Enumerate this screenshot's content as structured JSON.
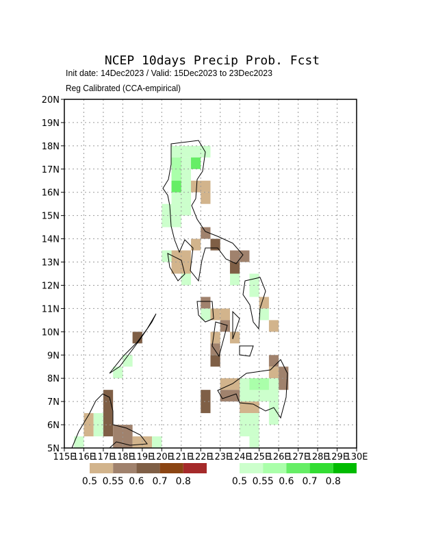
{
  "header": {
    "title": "NCEP 10days Precip Prob. Fcst",
    "line1": "Init date: 14Dec2023 / Valid: 15Dec2023 to 23Dec2023",
    "line2": "Reg Calibrated (CCA-empirical)"
  },
  "map": {
    "lon_range": [
      115,
      130
    ],
    "lat_range": [
      5,
      20
    ],
    "lon_ticks": [
      {
        "value": 115,
        "label": "115E"
      },
      {
        "value": 116,
        "label": "116E"
      },
      {
        "value": 117,
        "label": "117E"
      },
      {
        "value": 118,
        "label": "118E"
      },
      {
        "value": 119,
        "label": "119E"
      },
      {
        "value": 120,
        "label": "120E"
      },
      {
        "value": 121,
        "label": "121E"
      },
      {
        "value": 122,
        "label": "122E"
      },
      {
        "value": 123,
        "label": "123E"
      },
      {
        "value": 124,
        "label": "124E"
      },
      {
        "value": 125,
        "label": "125E"
      },
      {
        "value": 126,
        "label": "126E"
      },
      {
        "value": 127,
        "label": "127E"
      },
      {
        "value": 128,
        "label": "128E"
      },
      {
        "value": 129,
        "label": "129E"
      },
      {
        "value": 130,
        "label": "130E"
      }
    ],
    "lat_ticks": [
      {
        "value": 5,
        "label": "5N"
      },
      {
        "value": 6,
        "label": "6N"
      },
      {
        "value": 7,
        "label": "7N"
      },
      {
        "value": 8,
        "label": "8N"
      },
      {
        "value": 9,
        "label": "9N"
      },
      {
        "value": 10,
        "label": "10N"
      },
      {
        "value": 11,
        "label": "11N"
      },
      {
        "value": 12,
        "label": "12N"
      },
      {
        "value": 13,
        "label": "13N"
      },
      {
        "value": 14,
        "label": "14N"
      },
      {
        "value": 15,
        "label": "15N"
      },
      {
        "value": 16,
        "label": "16N"
      },
      {
        "value": 17,
        "label": "17N"
      },
      {
        "value": 18,
        "label": "18N"
      },
      {
        "value": 19,
        "label": "19N"
      },
      {
        "value": 20,
        "label": "20N"
      }
    ],
    "grid": true,
    "blocks": [
      {
        "lon": [
          120.5,
          122.5
        ],
        "lat": [
          17.5,
          18
        ],
        "color": "#ccffcc"
      },
      {
        "lon": [
          120.5,
          121.5
        ],
        "lat": [
          15,
          17.5
        ],
        "color": "#ccffcc"
      },
      {
        "lon": [
          120.5,
          121
        ],
        "lat": [
          16.5,
          17.5
        ],
        "color": "#aaffaa"
      },
      {
        "lon": [
          121.5,
          122
        ],
        "lat": [
          17,
          17.5
        ],
        "color": "#66ee66"
      },
      {
        "lon": [
          120.5,
          121
        ],
        "lat": [
          16,
          16.5
        ],
        "color": "#66ee66"
      },
      {
        "lon": [
          121.5,
          122.5
        ],
        "lat": [
          16,
          16.5
        ],
        "color": "#d2b48c"
      },
      {
        "lon": [
          122,
          122.5
        ],
        "lat": [
          15.5,
          16
        ],
        "color": "#d2b48c"
      },
      {
        "lon": [
          120,
          121
        ],
        "lat": [
          14.5,
          15.5
        ],
        "color": "#ccffcc"
      },
      {
        "lon": [
          122,
          122.5
        ],
        "lat": [
          14,
          14.5
        ],
        "color": "#a0826d"
      },
      {
        "lon": [
          121.5,
          122
        ],
        "lat": [
          13.5,
          14
        ],
        "color": "#d2b48c"
      },
      {
        "lon": [
          122.5,
          123
        ],
        "lat": [
          13.5,
          14
        ],
        "color": "#7f5f46"
      },
      {
        "lon": [
          123.5,
          124.5
        ],
        "lat": [
          13,
          13.5
        ],
        "color": "#a0826d"
      },
      {
        "lon": [
          123.5,
          124
        ],
        "lat": [
          12.5,
          13
        ],
        "color": "#7f5f46"
      },
      {
        "lon": [
          120.5,
          121.5
        ],
        "lat": [
          12.5,
          13.5
        ],
        "color": "#d2b48c"
      },
      {
        "lon": [
          120,
          120.5
        ],
        "lat": [
          13,
          13.5
        ],
        "color": "#ccffcc"
      },
      {
        "lon": [
          121,
          121.5
        ],
        "lat": [
          12,
          12.5
        ],
        "color": "#ccffcc"
      },
      {
        "lon": [
          123.5,
          124
        ],
        "lat": [
          12,
          12.5
        ],
        "color": "#ccffcc"
      },
      {
        "lon": [
          122,
          122.5
        ],
        "lat": [
          11,
          11.5
        ],
        "color": "#a0826d"
      },
      {
        "lon": [
          122.5,
          123
        ],
        "lat": [
          10.5,
          11
        ],
        "color": "#d2b48c"
      },
      {
        "lon": [
          122,
          122.5
        ],
        "lat": [
          10.5,
          11
        ],
        "color": "#ccffcc"
      },
      {
        "lon": [
          123,
          123.5
        ],
        "lat": [
          10.5,
          11
        ],
        "color": "#d2b48c"
      },
      {
        "lon": [
          124.5,
          125
        ],
        "lat": [
          11.5,
          12.5
        ],
        "color": "#ccffcc"
      },
      {
        "lon": [
          125,
          125.5
        ],
        "lat": [
          11,
          11.5
        ],
        "color": "#d2b48c"
      },
      {
        "lon": [
          125,
          125.5
        ],
        "lat": [
          10.5,
          11
        ],
        "color": "#ccffcc"
      },
      {
        "lon": [
          125.5,
          126
        ],
        "lat": [
          10,
          10.5
        ],
        "color": "#d2b48c"
      },
      {
        "lon": [
          123,
          123.5
        ],
        "lat": [
          10,
          10.5
        ],
        "color": "#a0826d"
      },
      {
        "lon": [
          122.5,
          123
        ],
        "lat": [
          9.5,
          10
        ],
        "color": "#d2b48c"
      },
      {
        "lon": [
          122.5,
          123
        ],
        "lat": [
          9,
          9.5
        ],
        "color": "#a0826d"
      },
      {
        "lon": [
          122.5,
          123
        ],
        "lat": [
          8.5,
          9
        ],
        "color": "#7f5f46"
      },
      {
        "lon": [
          123.5,
          124
        ],
        "lat": [
          9.5,
          10
        ],
        "color": "#d2b48c"
      },
      {
        "lon": [
          125.5,
          126
        ],
        "lat": [
          8.5,
          9
        ],
        "color": "#a0826d"
      },
      {
        "lon": [
          126,
          126.5
        ],
        "lat": [
          7.5,
          8.5
        ],
        "color": "#a0826d"
      },
      {
        "lon": [
          125.5,
          126
        ],
        "lat": [
          8,
          8.5
        ],
        "color": "#d2b48c"
      },
      {
        "lon": [
          124,
          126
        ],
        "lat": [
          7,
          8
        ],
        "color": "#ccffcc"
      },
      {
        "lon": [
          124.5,
          125.5
        ],
        "lat": [
          7.5,
          8
        ],
        "color": "#aaffaa"
      },
      {
        "lon": [
          123,
          124
        ],
        "lat": [
          7.5,
          8
        ],
        "color": "#d2b48c"
      },
      {
        "lon": [
          123,
          124
        ],
        "lat": [
          7,
          7.5
        ],
        "color": "#a0826d"
      },
      {
        "lon": [
          122,
          122.5
        ],
        "lat": [
          6.5,
          7.5
        ],
        "color": "#7f5f46"
      },
      {
        "lon": [
          124,
          125
        ],
        "lat": [
          6.5,
          7
        ],
        "color": "#d2b48c"
      },
      {
        "lon": [
          124,
          125
        ],
        "lat": [
          5.5,
          6.5
        ],
        "color": "#ccffcc"
      },
      {
        "lon": [
          124.5,
          125
        ],
        "lat": [
          5,
          5.5
        ],
        "color": "#ccffcc"
      },
      {
        "lon": [
          125.5,
          126
        ],
        "lat": [
          6,
          7
        ],
        "color": "#ccffcc"
      },
      {
        "lon": [
          116,
          116.5
        ],
        "lat": [
          5.5,
          6.5
        ],
        "color": "#d2b48c"
      },
      {
        "lon": [
          115.5,
          116
        ],
        "lat": [
          5,
          5.5
        ],
        "color": "#ccffcc"
      },
      {
        "lon": [
          117,
          117.5
        ],
        "lat": [
          5.5,
          7.5
        ],
        "color": "#7f5f46"
      },
      {
        "lon": [
          117.5,
          118.5
        ],
        "lat": [
          5,
          6
        ],
        "color": "#a0826d"
      },
      {
        "lon": [
          118.5,
          119.5
        ],
        "lat": [
          5,
          5.5
        ],
        "color": "#d2b48c"
      },
      {
        "lon": [
          116.5,
          117
        ],
        "lat": [
          5.5,
          6.5
        ],
        "color": "#ccffcc"
      },
      {
        "lon": [
          118.5,
          119
        ],
        "lat": [
          9.5,
          10
        ],
        "color": "#7f5f46"
      },
      {
        "lon": [
          117.5,
          118
        ],
        "lat": [
          8,
          8.5
        ],
        "color": "#ccffcc"
      },
      {
        "lon": [
          118,
          118.5
        ],
        "lat": [
          8.5,
          9
        ],
        "color": "#ccffcc"
      },
      {
        "lon": [
          119.5,
          120
        ],
        "lat": [
          5,
          5.5
        ],
        "color": "#ccffcc"
      }
    ]
  },
  "legend": {
    "below": {
      "colors": [
        "#d2b48c",
        "#a0826d",
        "#7f5f46",
        "#8b4513",
        "#a52a2a"
      ],
      "labels": [
        "0.5",
        "0.55",
        "0.6",
        "0.7",
        "0.8"
      ]
    },
    "above": {
      "colors": [
        "#ccffcc",
        "#aaffaa",
        "#66ee66",
        "#33dd33",
        "#00bb00"
      ],
      "labels": [
        "0.5",
        "0.55",
        "0.6",
        "0.7",
        "0.8"
      ]
    }
  }
}
